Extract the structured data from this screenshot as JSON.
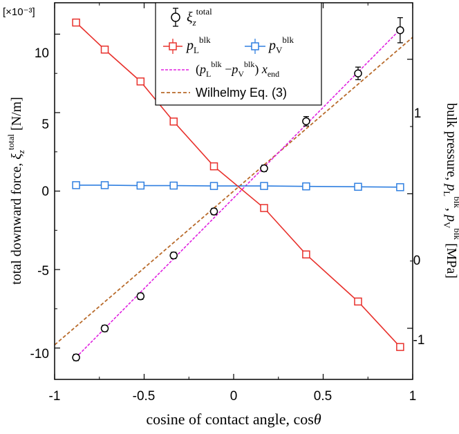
{
  "chart_data": {
    "type": "scatter",
    "title": "",
    "xlabel": "cosine of contact angle, cosθ",
    "ylabel_left": "total downward force, ξ_z^total [N/m]",
    "ylabel_right": "bulk pressure, p_L^blk, p_V^blk [MPa]",
    "left_axis_multiplier": "[×10⁻³]",
    "xlim": [
      -1,
      1
    ],
    "ylim_left": [
      -12,
      12
    ],
    "ylim_right": [
      -1.38,
      1.42
    ],
    "x_ticks": [
      "-1",
      "-0.5",
      "0",
      "0.5",
      "1"
    ],
    "y_left_ticks": [
      "10",
      "5",
      "0",
      "-5",
      "-10"
    ],
    "y_right_ticks": [
      "1",
      "0",
      "-1"
    ],
    "grid": false,
    "legend_position": "top-center",
    "colors": {
      "xi_total": "#000000",
      "pL": "#e8302b",
      "pV": "#2f7fe0",
      "fit": "#e020e0",
      "wilhelmy": "#b86a2a"
    },
    "legend": {
      "xi_total": "ξ_z^total",
      "pL": "p_L^blk",
      "pV": "p_V^blk",
      "fit": "(p_L^blk − p_V^blk) x_end",
      "wilhelmy": "Wilhelmy Eq. (3)"
    },
    "series": [
      {
        "name": "ξ_z^total",
        "axis": "left",
        "x": [
          -0.88,
          -0.72,
          -0.52,
          -0.335,
          -0.11,
          0.17,
          0.405,
          0.695,
          0.93
        ],
        "y": [
          -10.6,
          -8.75,
          -6.7,
          -4.1,
          -1.3,
          1.45,
          4.45,
          7.5,
          10.25
        ],
        "err": [
          0.2,
          0.2,
          0.2,
          0.2,
          0.2,
          0.2,
          0.3,
          0.4,
          0.8
        ]
      },
      {
        "name": "p_L^blk",
        "axis": "right",
        "x": [
          -0.88,
          -0.72,
          -0.52,
          -0.335,
          -0.11,
          0.17,
          0.405,
          0.695,
          0.93
        ],
        "y": [
          1.273,
          1.072,
          0.835,
          0.537,
          0.204,
          -0.106,
          -0.451,
          -0.801,
          -1.139
        ]
      },
      {
        "name": "p_V^blk",
        "axis": "right",
        "x": [
          -0.88,
          -0.72,
          -0.52,
          -0.335,
          -0.11,
          0.17,
          0.405,
          0.695,
          0.93
        ],
        "y": [
          0.064,
          0.064,
          0.061,
          0.061,
          0.058,
          0.058,
          0.055,
          0.052,
          0.049
        ]
      },
      {
        "name": "(p_L^blk − p_V^blk) x_end",
        "axis": "left",
        "style": "dotted",
        "x": [
          -0.88,
          0.93
        ],
        "y": [
          -10.6,
          10.3
        ]
      },
      {
        "name": "Wilhelmy Eq. (3)",
        "axis": "left",
        "style": "dashed",
        "x": [
          -1.0,
          1.0
        ],
        "y": [
          -9.8,
          9.8
        ]
      }
    ]
  }
}
